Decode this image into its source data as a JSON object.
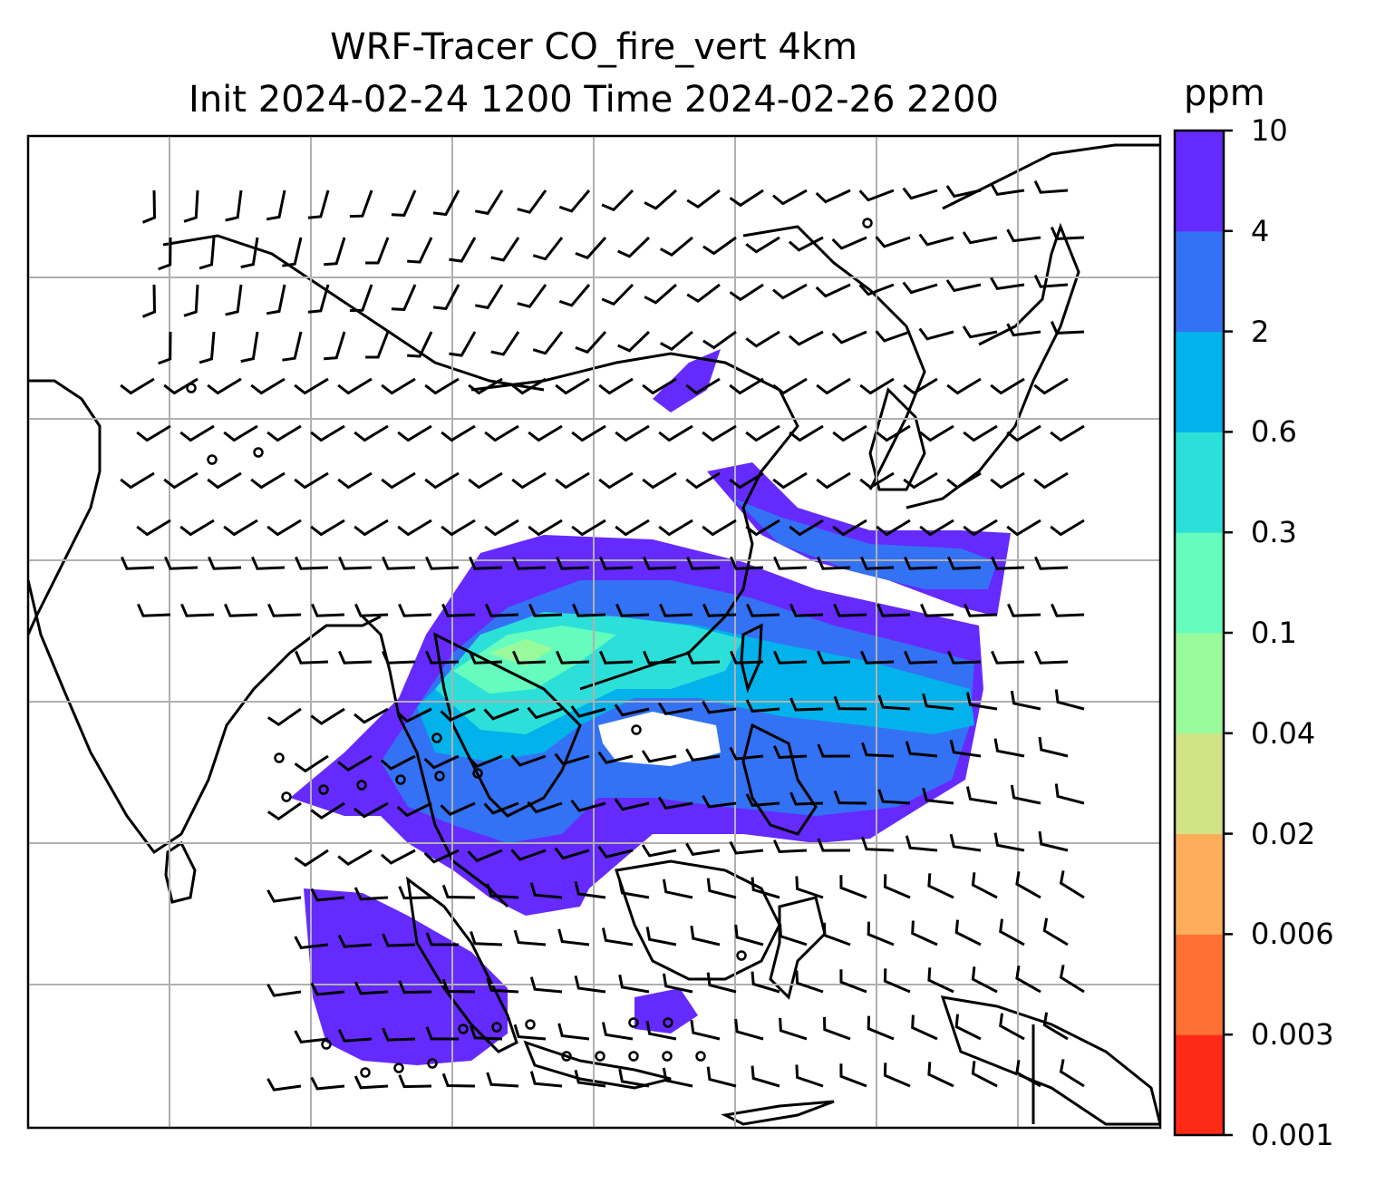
{
  "title": {
    "line1": "WRF-Tracer CO_fire_vert 4km",
    "line2": "Init 2024-02-24 1200 Time 2024-02-26 2200"
  },
  "colorbar": {
    "label": "ppm",
    "ticks": [
      "10",
      "4",
      "2",
      "0.6",
      "0.3",
      "0.1",
      "0.04",
      "0.02",
      "0.006",
      "0.003",
      "0.001"
    ],
    "colors": [
      "#ff2a16",
      "#ff7035",
      "#fdad5c",
      "#d1e384",
      "#99fa9c",
      "#65fcbd",
      "#2ddfd9",
      "#03b2ea",
      "#3372f4",
      "#652afd"
    ]
  },
  "map": {
    "gridlines": true,
    "colors": {
      "coast": "#000000",
      "grid": "#b0b0b0",
      "barb": "#000000"
    }
  }
}
